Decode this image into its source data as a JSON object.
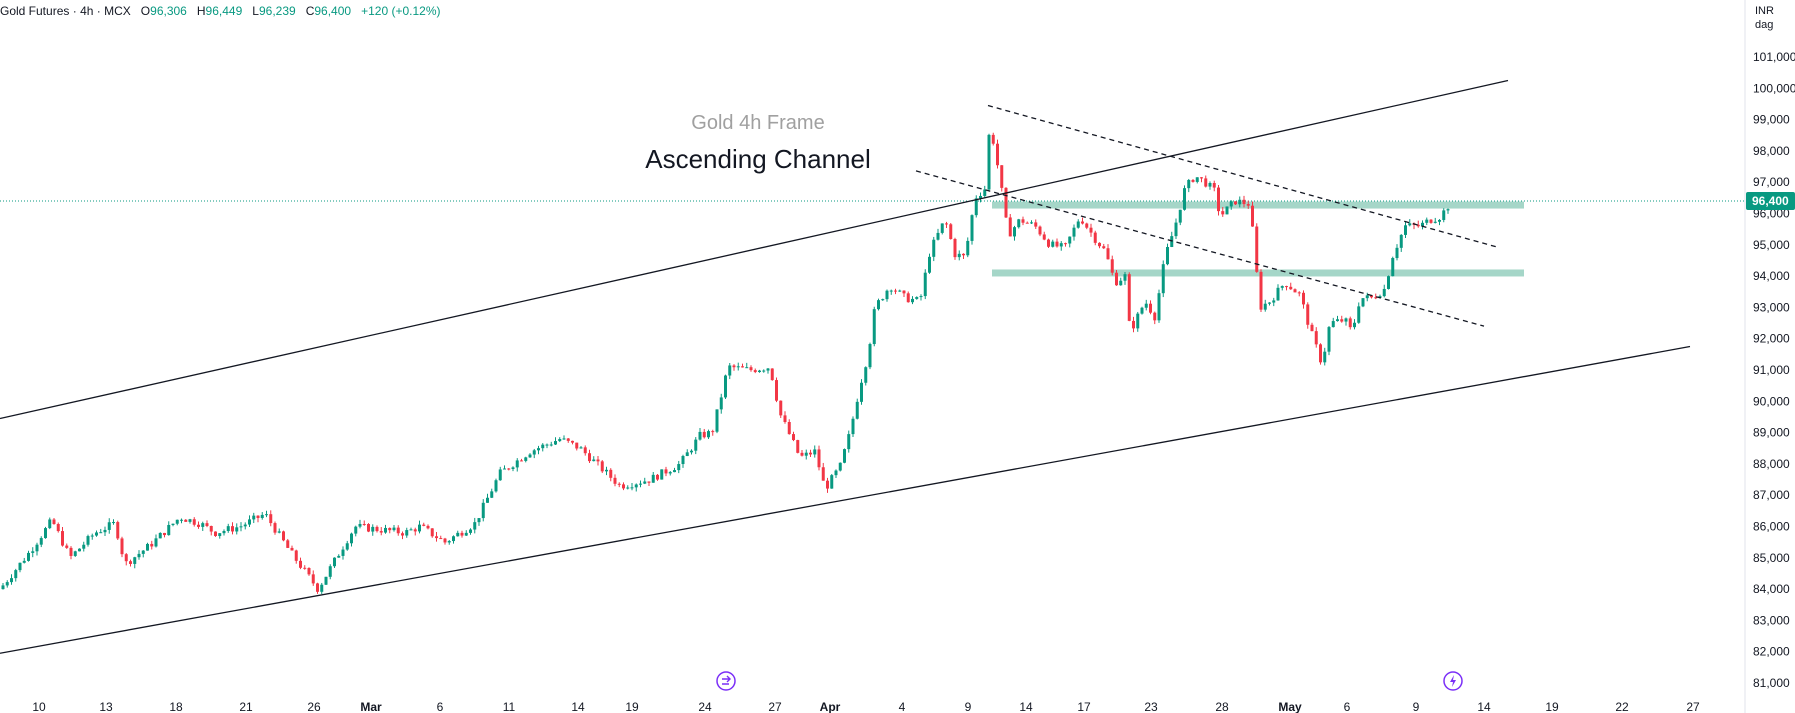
{
  "header": {
    "symbol": "Gold Futures",
    "timeframe": "4h",
    "exchange": "MCX",
    "open_label": "O",
    "open": "96,306",
    "high_label": "H",
    "high": "96,449",
    "low_label": "L",
    "low": "96,239",
    "close_label": "C",
    "close": "96,400",
    "change": "+120 (+0.12%)",
    "currency": "INR",
    "unit": "dag"
  },
  "colors": {
    "up": "#089981",
    "down": "#f23645",
    "zone": "#a5d6c8",
    "channel": "#131722",
    "price_label_bg": "#089981",
    "event_icon": "#7b2ff7"
  },
  "chart_data": {
    "type": "candlestick",
    "annotations": [
      "Gold 4h Frame",
      "Ascending Channel"
    ],
    "ylim": [
      80700,
      101600
    ],
    "yticks": [
      81000,
      82000,
      83000,
      84000,
      85000,
      86000,
      87000,
      88000,
      89000,
      90000,
      91000,
      92000,
      93000,
      94000,
      95000,
      96000,
      97000,
      98000,
      99000,
      100000,
      101000
    ],
    "ytick_labels": [
      "81,000",
      "82,000",
      "83,000",
      "84,000",
      "85,000",
      "86,000",
      "87,000",
      "88,000",
      "89,000",
      "90,000",
      "91,000",
      "92,000",
      "93,000",
      "94,000",
      "95,000",
      "96,000",
      "97,000",
      "98,000",
      "99,000",
      "100,000",
      "101,000"
    ],
    "xtick_labels": [
      "10",
      "13",
      "18",
      "21",
      "26",
      "Mar",
      "6",
      "11",
      "14",
      "19",
      "24",
      "27",
      "Apr",
      "4",
      "9",
      "14",
      "17",
      "23",
      "28",
      "May",
      "6",
      "9",
      "14",
      "19",
      "22",
      "27"
    ],
    "last_price": 96400,
    "last_price_label": "96,400",
    "channel_upper": [
      [
        0,
        89450
      ],
      [
        1508,
        100250
      ]
    ],
    "channel_lower": [
      [
        0,
        81950
      ],
      [
        1690,
        91750
      ]
    ],
    "trend_dashed_upper": [
      [
        988,
        99450
      ],
      [
        1498,
        94920
      ]
    ],
    "trend_dashed_lower": [
      [
        916,
        97360
      ],
      [
        1484,
        92400
      ]
    ],
    "support_zones": [
      {
        "x_start": 992,
        "x_end": 1524,
        "price": 96270
      },
      {
        "x_start": 992,
        "x_end": 1524,
        "price": 94100
      }
    ],
    "event_markers": [
      {
        "x": 726,
        "type": "split"
      },
      {
        "x": 1453,
        "type": "earnings"
      }
    ],
    "path_points": [
      [
        0,
        84000
      ],
      [
        30,
        85200
      ],
      [
        52,
        86200
      ],
      [
        70,
        85000
      ],
      [
        95,
        85800
      ],
      [
        115,
        86100
      ],
      [
        125,
        84800
      ],
      [
        150,
        85400
      ],
      [
        180,
        86300
      ],
      [
        200,
        86100
      ],
      [
        215,
        85800
      ],
      [
        240,
        86000
      ],
      [
        265,
        86400
      ],
      [
        290,
        85200
      ],
      [
        318,
        84000
      ],
      [
        340,
        85200
      ],
      [
        355,
        86000
      ],
      [
        380,
        85900
      ],
      [
        405,
        85800
      ],
      [
        420,
        86000
      ],
      [
        445,
        85500
      ],
      [
        475,
        86100
      ],
      [
        500,
        87700
      ],
      [
        530,
        88400
      ],
      [
        560,
        88800
      ],
      [
        580,
        88500
      ],
      [
        600,
        87900
      ],
      [
        620,
        87300
      ],
      [
        650,
        87500
      ],
      [
        680,
        88000
      ],
      [
        700,
        88900
      ],
      [
        712,
        89000
      ],
      [
        720,
        90000
      ],
      [
        728,
        91100
      ],
      [
        750,
        91000
      ],
      [
        770,
        91100
      ],
      [
        780,
        89600
      ],
      [
        800,
        88200
      ],
      [
        815,
        88400
      ],
      [
        825,
        87200
      ],
      [
        840,
        87900
      ],
      [
        850,
        89000
      ],
      [
        860,
        90500
      ],
      [
        868,
        91500
      ],
      [
        875,
        93000
      ],
      [
        890,
        93700
      ],
      [
        905,
        93300
      ],
      [
        920,
        93200
      ],
      [
        930,
        94800
      ],
      [
        945,
        95800
      ],
      [
        955,
        94700
      ],
      [
        965,
        94600
      ],
      [
        975,
        96500
      ],
      [
        985,
        96800
      ],
      [
        990,
        98900
      ],
      [
        1000,
        97100
      ],
      [
        1008,
        95300
      ],
      [
        1020,
        95800
      ],
      [
        1035,
        95600
      ],
      [
        1050,
        95000
      ],
      [
        1065,
        94900
      ],
      [
        1080,
        95900
      ],
      [
        1095,
        95200
      ],
      [
        1105,
        94800
      ],
      [
        1115,
        93800
      ],
      [
        1125,
        94000
      ],
      [
        1130,
        92200
      ],
      [
        1145,
        93200
      ],
      [
        1155,
        92700
      ],
      [
        1165,
        94600
      ],
      [
        1175,
        95600
      ],
      [
        1185,
        96800
      ],
      [
        1195,
        97200
      ],
      [
        1205,
        97000
      ],
      [
        1215,
        96700
      ],
      [
        1220,
        95900
      ],
      [
        1235,
        96400
      ],
      [
        1250,
        96300
      ],
      [
        1260,
        93000
      ],
      [
        1270,
        93200
      ],
      [
        1285,
        93800
      ],
      [
        1300,
        93400
      ],
      [
        1310,
        92300
      ],
      [
        1322,
        91200
      ],
      [
        1330,
        92500
      ],
      [
        1345,
        92600
      ],
      [
        1352,
        92200
      ],
      [
        1360,
        93300
      ],
      [
        1372,
        93300
      ],
      [
        1385,
        93600
      ],
      [
        1392,
        94600
      ],
      [
        1405,
        95600
      ],
      [
        1420,
        95600
      ],
      [
        1430,
        95800
      ],
      [
        1440,
        95900
      ],
      [
        1452,
        96400
      ]
    ]
  }
}
